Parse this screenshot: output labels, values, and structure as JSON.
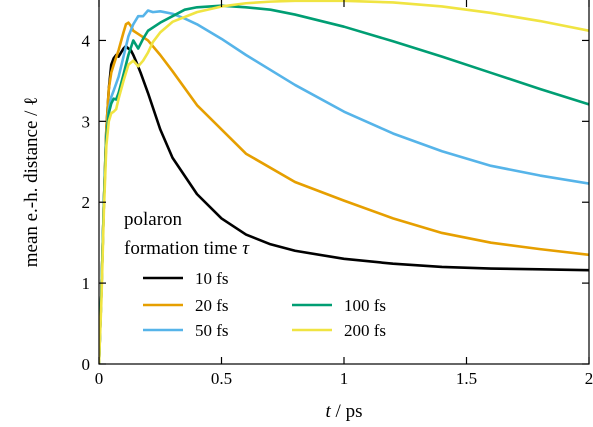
{
  "chart_data": {
    "type": "line",
    "xlabel_italic": "t",
    "xlabel_rest": " / ps",
    "ylabel": "mean e.-h. distance / ℓ",
    "xlim": [
      0,
      2
    ],
    "ylim": [
      0,
      4.5
    ],
    "x_ticks": [
      0,
      0.5,
      1,
      1.5,
      2
    ],
    "x_tick_labels": [
      "0",
      "0.5",
      "1",
      "1.5",
      "2"
    ],
    "y_ticks": [
      0,
      1,
      2,
      3,
      4
    ],
    "y_tick_labels": [
      "0",
      "1",
      "2",
      "3",
      "4"
    ],
    "grid": false,
    "legend_title_line1": "polaron",
    "legend_title_line2": "formation time ",
    "legend_title_symbol": "τ",
    "legend_position": "lower-left",
    "series": [
      {
        "name": "10 fs",
        "color": "#000000",
        "x": [
          0,
          0.01,
          0.02,
          0.03,
          0.04,
          0.05,
          0.06,
          0.07,
          0.08,
          0.09,
          0.1,
          0.11,
          0.12,
          0.13,
          0.14,
          0.15,
          0.17,
          0.2,
          0.25,
          0.3,
          0.4,
          0.5,
          0.6,
          0.7,
          0.8,
          1.0,
          1.2,
          1.4,
          1.6,
          1.8,
          2.0
        ],
        "y": [
          0,
          0.9,
          2.0,
          2.9,
          3.4,
          3.7,
          3.78,
          3.82,
          3.8,
          3.85,
          3.9,
          3.93,
          3.9,
          3.88,
          3.82,
          3.75,
          3.6,
          3.35,
          2.9,
          2.55,
          2.1,
          1.8,
          1.6,
          1.48,
          1.4,
          1.3,
          1.24,
          1.2,
          1.18,
          1.17,
          1.16
        ]
      },
      {
        "name": "20 fs",
        "color": "#E69F00",
        "x": [
          0,
          0.01,
          0.02,
          0.03,
          0.04,
          0.05,
          0.06,
          0.08,
          0.1,
          0.11,
          0.12,
          0.13,
          0.14,
          0.16,
          0.18,
          0.2,
          0.25,
          0.3,
          0.4,
          0.5,
          0.6,
          0.8,
          1.0,
          1.2,
          1.4,
          1.6,
          1.8,
          2.0
        ],
        "y": [
          0,
          0.9,
          2.0,
          2.9,
          3.4,
          3.6,
          3.7,
          3.88,
          4.1,
          4.2,
          4.22,
          4.18,
          4.12,
          4.08,
          4.04,
          4.0,
          3.82,
          3.62,
          3.2,
          2.9,
          2.6,
          2.25,
          2.02,
          1.8,
          1.62,
          1.5,
          1.42,
          1.35
        ]
      },
      {
        "name": "50 fs",
        "color": "#56B4E9",
        "x": [
          0,
          0.01,
          0.02,
          0.03,
          0.04,
          0.05,
          0.06,
          0.08,
          0.1,
          0.12,
          0.14,
          0.16,
          0.18,
          0.2,
          0.22,
          0.25,
          0.3,
          0.35,
          0.4,
          0.5,
          0.6,
          0.8,
          1.0,
          1.2,
          1.4,
          1.6,
          1.8,
          2.0
        ],
        "y": [
          0,
          0.9,
          2.0,
          2.8,
          3.15,
          3.3,
          3.38,
          3.55,
          3.8,
          4.05,
          4.2,
          4.3,
          4.3,
          4.37,
          4.35,
          4.36,
          4.33,
          4.27,
          4.2,
          4.02,
          3.82,
          3.45,
          3.12,
          2.85,
          2.63,
          2.45,
          2.33,
          2.23
        ]
      },
      {
        "name": "100 fs",
        "color": "#009E73",
        "x": [
          0,
          0.01,
          0.02,
          0.03,
          0.04,
          0.05,
          0.06,
          0.07,
          0.08,
          0.1,
          0.12,
          0.14,
          0.16,
          0.18,
          0.2,
          0.25,
          0.3,
          0.35,
          0.4,
          0.5,
          0.6,
          0.7,
          0.8,
          1.0,
          1.2,
          1.4,
          1.6,
          1.8,
          2.0
        ],
        "y": [
          0,
          0.9,
          2.0,
          2.8,
          3.1,
          3.22,
          3.28,
          3.27,
          3.35,
          3.58,
          3.82,
          4.0,
          3.9,
          4.02,
          4.12,
          4.22,
          4.3,
          4.38,
          4.41,
          4.43,
          4.41,
          4.38,
          4.32,
          4.17,
          3.99,
          3.8,
          3.6,
          3.4,
          3.21
        ]
      },
      {
        "name": "200 fs",
        "color": "#F0E442",
        "x": [
          0,
          0.01,
          0.02,
          0.03,
          0.04,
          0.05,
          0.06,
          0.07,
          0.08,
          0.1,
          0.12,
          0.14,
          0.16,
          0.18,
          0.2,
          0.22,
          0.25,
          0.3,
          0.4,
          0.5,
          0.6,
          0.7,
          0.8,
          0.9,
          1.0,
          1.2,
          1.4,
          1.6,
          1.8,
          2.0
        ],
        "y": [
          0,
          0.8,
          1.9,
          2.7,
          3.0,
          3.1,
          3.12,
          3.15,
          3.28,
          3.5,
          3.7,
          3.75,
          3.68,
          3.75,
          3.85,
          3.98,
          4.1,
          4.23,
          4.35,
          4.42,
          4.46,
          4.48,
          4.49,
          4.49,
          4.49,
          4.47,
          4.42,
          4.34,
          4.24,
          4.12
        ]
      }
    ],
    "legend_layout": [
      {
        "series": 0,
        "col": 0,
        "row": 0
      },
      {
        "series": 1,
        "col": 0,
        "row": 1
      },
      {
        "series": 2,
        "col": 0,
        "row": 2
      },
      {
        "series": 3,
        "col": 1,
        "row": 1
      },
      {
        "series": 4,
        "col": 1,
        "row": 2
      }
    ]
  }
}
